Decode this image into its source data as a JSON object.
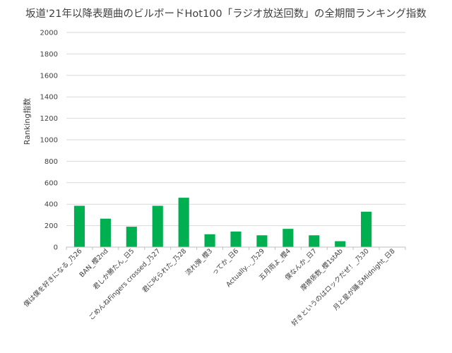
{
  "chart_data": {
    "type": "bar",
    "title": "坂道'21年以降表題曲のビルボードHot100「ラジオ放送回数」の全期間ランキング指数",
    "xlabel": "",
    "ylabel": "Ranking指数",
    "ylim": [
      0,
      2000
    ],
    "yticks": [
      "0",
      "200",
      "400",
      "600",
      "800",
      "1000",
      "1200",
      "1400",
      "1600",
      "1800",
      "2000"
    ],
    "grid": true,
    "legend": "none",
    "bar_color": "#00b050",
    "categories": [
      "僕は僕を好きになる_乃26",
      "BAN_櫻2nd",
      "君しか勝たん_日5",
      "ごめんねFingers crossed_乃27",
      "君に叱られた_乃28",
      "流れ弾_櫻3",
      "ってか_日6",
      "Actually..._乃29",
      "五月雨よ_櫻4",
      "僕なんか_日7",
      "摩擦係数_櫻1stAb",
      "好きというのはロックだぜ！_乃30",
      "月と星が踊るMidnight_日8"
    ],
    "values": [
      385,
      265,
      190,
      385,
      460,
      120,
      145,
      110,
      170,
      110,
      55,
      330,
      0
    ]
  }
}
